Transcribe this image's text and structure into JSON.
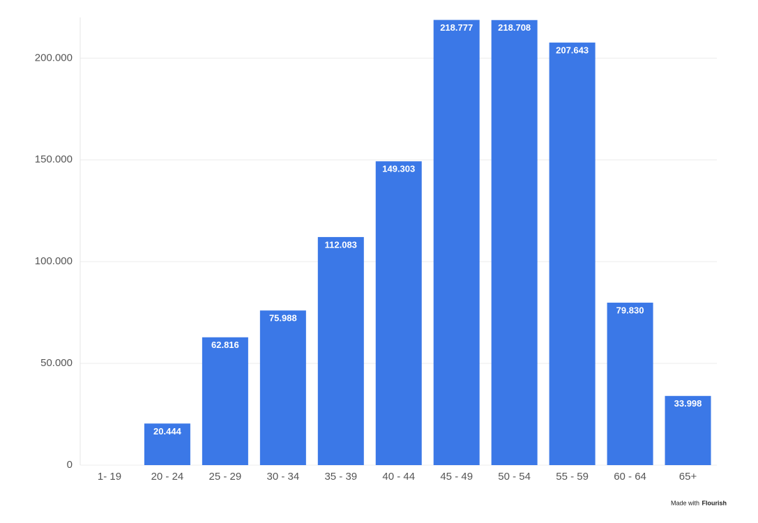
{
  "chart_data": {
    "type": "bar",
    "categories": [
      "1- 19",
      "20 - 24",
      "25 - 29",
      "30 - 34",
      "35 - 39",
      "40 - 44",
      "45 - 49",
      "50 - 54",
      "55 - 59",
      "60 - 64",
      "65+"
    ],
    "values": [
      null,
      20444,
      62816,
      75988,
      112083,
      149303,
      218777,
      218708,
      207643,
      79830,
      33998
    ],
    "value_labels": [
      null,
      "20.444",
      "62.816",
      "75.988",
      "112.083",
      "149.303",
      "218.777",
      "218.708",
      "207.643",
      "79.830",
      "33.998"
    ],
    "color": "#3b78e7",
    "ylim": [
      0,
      220000
    ],
    "yticks": [
      0,
      {
        "value": 50000,
        "label": "50.000"
      },
      {
        "value": 100000,
        "label": "100.000"
      },
      {
        "value": 150000,
        "label": "150.000"
      },
      {
        "value": 200000,
        "label": "200.000"
      }
    ],
    "grid": true
  },
  "footer": {
    "text": "Made with",
    "brand": "Flourish"
  }
}
